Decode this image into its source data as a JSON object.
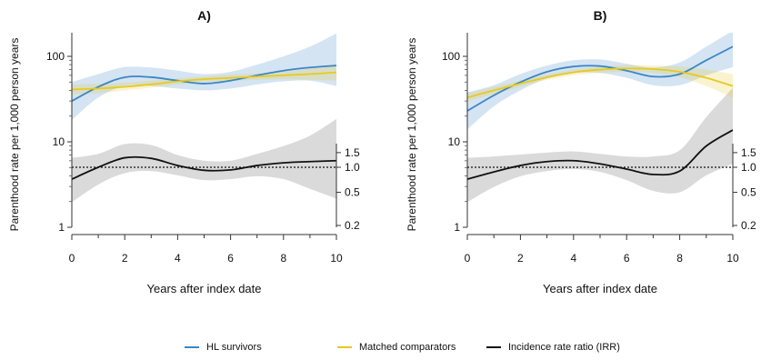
{
  "figure": {
    "legend": [
      {
        "label": "HL survivors",
        "color": "#3b86c6"
      },
      {
        "label": "Matched comparators",
        "color": "#e6c924"
      },
      {
        "label": "Incidence rate ratio (IRR)",
        "color": "#111111"
      }
    ]
  },
  "chart_data": [
    {
      "type": "line",
      "title": "A)",
      "xlabel": "Years after index date",
      "ylabel": "Parenthood rate per 1,000 person years",
      "xlim": [
        0,
        10
      ],
      "x_ticks": [
        0,
        2,
        4,
        6,
        8,
        10
      ],
      "y_scale": "log",
      "ylim": [
        1,
        200
      ],
      "y_ticks": [
        1,
        10,
        100
      ],
      "y2_scale": "log",
      "y2_ticks": [
        0.2,
        0.5,
        1.0,
        1.5
      ],
      "y2_tick_labels": [
        "0.2",
        "0.5",
        "1.0",
        "1.5"
      ],
      "reference_line": {
        "axis": "y2",
        "value": 1.0,
        "style": "dotted"
      },
      "grid": false,
      "x": [
        0,
        1,
        2,
        3,
        4,
        5,
        6,
        7,
        8,
        9,
        10
      ],
      "series": [
        {
          "name": "HL survivors",
          "color": "#3b86c6",
          "axis": "y",
          "values": [
            30,
            44,
            57,
            57,
            52,
            48,
            52,
            60,
            68,
            74,
            78
          ],
          "lower": [
            18,
            33,
            45,
            45,
            42,
            40,
            42,
            47,
            51,
            52,
            45
          ],
          "upper": [
            50,
            62,
            75,
            74,
            68,
            62,
            66,
            80,
            100,
            130,
            185
          ]
        },
        {
          "name": "Matched comparators",
          "color": "#e6c924",
          "axis": "y",
          "values": [
            41,
            42,
            44,
            47,
            51,
            54,
            56,
            58,
            60,
            62,
            65
          ],
          "lower": [
            36,
            37,
            40,
            43,
            47,
            50,
            52,
            53,
            54,
            53,
            52
          ],
          "upper": [
            47,
            48,
            49,
            52,
            55,
            58,
            61,
            63,
            66,
            72,
            82
          ]
        },
        {
          "name": "Incidence rate ratio (IRR)",
          "color": "#111111",
          "axis": "y2",
          "values": [
            0.72,
            1.0,
            1.3,
            1.28,
            1.05,
            0.92,
            0.93,
            1.05,
            1.13,
            1.17,
            1.2
          ],
          "lower": [
            0.38,
            0.62,
            0.85,
            0.9,
            0.8,
            0.7,
            0.72,
            0.78,
            0.72,
            0.55,
            0.42
          ],
          "upper": [
            1.3,
            1.45,
            1.9,
            1.85,
            1.4,
            1.2,
            1.2,
            1.45,
            1.8,
            2.4,
            3.8
          ]
        }
      ]
    },
    {
      "type": "line",
      "title": "B)",
      "xlabel": "Years after index date",
      "ylabel": "Parenthood rate per 1,000 person years",
      "xlim": [
        0,
        10
      ],
      "x_ticks": [
        0,
        2,
        4,
        6,
        8,
        10
      ],
      "y_scale": "log",
      "ylim": [
        1,
        200
      ],
      "y_ticks": [
        1,
        10,
        100
      ],
      "y2_scale": "log",
      "y2_ticks": [
        0.2,
        0.5,
        1.0,
        1.5
      ],
      "y2_tick_labels": [
        "0.2",
        "0.5",
        "1.0",
        "1.5"
      ],
      "reference_line": {
        "axis": "y2",
        "value": 1.0,
        "style": "dotted"
      },
      "grid": false,
      "x": [
        0,
        1,
        2,
        3,
        4,
        5,
        6,
        7,
        8,
        9,
        10
      ],
      "series": [
        {
          "name": "HL survivors",
          "color": "#3b86c6",
          "axis": "y",
          "values": [
            23,
            35,
            50,
            66,
            76,
            77,
            68,
            58,
            62,
            90,
            130
          ],
          "lower": [
            14,
            26,
            40,
            55,
            64,
            64,
            56,
            46,
            46,
            60,
            75
          ],
          "upper": [
            38,
            46,
            62,
            78,
            90,
            92,
            82,
            74,
            85,
            130,
            200
          ]
        },
        {
          "name": "Matched comparators",
          "color": "#e6c924",
          "axis": "y",
          "values": [
            33,
            40,
            48,
            57,
            65,
            70,
            72,
            71,
            66,
            56,
            45
          ],
          "lower": [
            30,
            36,
            44,
            53,
            60,
            64,
            66,
            64,
            57,
            45,
            33
          ],
          "upper": [
            37,
            44,
            52,
            61,
            70,
            76,
            79,
            78,
            76,
            70,
            62
          ]
        },
        {
          "name": "Incidence rate ratio (IRR)",
          "color": "#111111",
          "axis": "y2",
          "values": [
            0.72,
            0.88,
            1.05,
            1.17,
            1.2,
            1.1,
            0.95,
            0.82,
            0.9,
            1.8,
            2.8
          ],
          "lower": [
            0.38,
            0.58,
            0.78,
            0.9,
            0.95,
            0.88,
            0.7,
            0.52,
            0.5,
            0.8,
            1.1
          ],
          "upper": [
            1.3,
            1.35,
            1.42,
            1.5,
            1.55,
            1.45,
            1.35,
            1.35,
            1.6,
            4.0,
            9.0
          ]
        }
      ]
    }
  ]
}
